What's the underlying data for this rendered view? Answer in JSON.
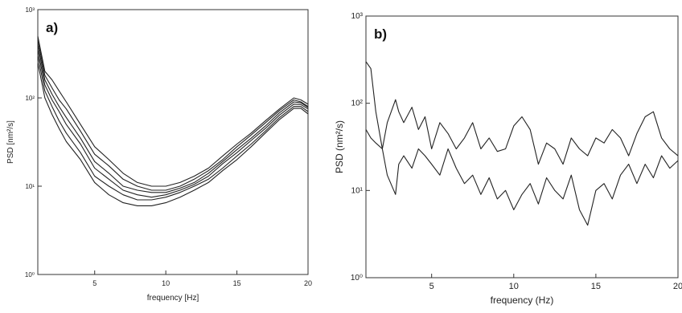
{
  "chart_data": [
    {
      "type": "line",
      "panel_label": "a)",
      "xlabel": "frequency [Hz]",
      "ylabel": "PSD [nm²/s]",
      "x_scale": "linear",
      "y_scale": "log",
      "xlim": [
        1,
        20
      ],
      "ylim": [
        1,
        1000
      ],
      "x_ticks": [
        5,
        10,
        15,
        20
      ],
      "y_ticks": [
        {
          "value": 1,
          "label": "10⁰"
        },
        {
          "value": 10,
          "label": "10¹"
        },
        {
          "value": 100,
          "label": "10²"
        },
        {
          "value": 1000,
          "label": "10³"
        }
      ],
      "grid": false,
      "line_color": "#222222",
      "series": [
        {
          "x": [
            1,
            1.5,
            2,
            2.5,
            3,
            4,
            5,
            6,
            7,
            8,
            9,
            10,
            11,
            12,
            13,
            14,
            15,
            16,
            17,
            18,
            19,
            19.5,
            20
          ],
          "y": [
            500,
            200,
            160,
            120,
            90,
            50,
            28,
            20,
            14,
            11,
            10,
            10,
            11,
            13,
            16,
            22,
            30,
            40,
            55,
            75,
            100,
            95,
            85
          ]
        },
        {
          "x": [
            1,
            1.5,
            2,
            2.5,
            3,
            4,
            5,
            6,
            7,
            8,
            9,
            10,
            11,
            12,
            13,
            14,
            15,
            16,
            17,
            18,
            19,
            19.5,
            20
          ],
          "y": [
            450,
            180,
            130,
            95,
            75,
            42,
            23,
            17,
            12,
            10,
            9,
            9,
            10,
            12,
            15,
            20,
            28,
            38,
            52,
            72,
            95,
            90,
            80
          ]
        },
        {
          "x": [
            1,
            1.5,
            2,
            2.5,
            3,
            4,
            5,
            6,
            7,
            8,
            9,
            10,
            11,
            12,
            13,
            14,
            15,
            16,
            17,
            18,
            19,
            19.5,
            20
          ],
          "y": [
            400,
            160,
            110,
            80,
            60,
            35,
            19,
            14,
            10,
            9,
            8.5,
            8.5,
            9.5,
            11,
            14,
            19,
            26,
            35,
            48,
            68,
            90,
            88,
            78
          ]
        },
        {
          "x": [
            1,
            1.5,
            2,
            2.5,
            3,
            4,
            5,
            6,
            7,
            8,
            9,
            10,
            11,
            12,
            13,
            14,
            15,
            16,
            17,
            18,
            19,
            19.5,
            20
          ],
          "y": [
            350,
            140,
            95,
            70,
            50,
            30,
            16,
            12,
            9,
            8,
            7.5,
            8,
            9,
            10.5,
            13,
            18,
            24,
            33,
            45,
            64,
            85,
            84,
            75
          ]
        },
        {
          "x": [
            1,
            1.5,
            2,
            2.5,
            3,
            4,
            5,
            6,
            7,
            8,
            9,
            10,
            11,
            12,
            13,
            14,
            15,
            16,
            17,
            18,
            19,
            19.5,
            20
          ],
          "y": [
            300,
            120,
            80,
            55,
            40,
            24,
            13,
            10,
            8,
            7,
            7,
            7.5,
            8.5,
            10,
            12,
            16,
            22,
            30,
            42,
            60,
            80,
            80,
            70
          ]
        },
        {
          "x": [
            1,
            1.5,
            2,
            2.5,
            3,
            4,
            5,
            6,
            7,
            8,
            9,
            10,
            11,
            12,
            13,
            14,
            15,
            16,
            17,
            18,
            19,
            19.5,
            20
          ],
          "y": [
            250,
            100,
            65,
            45,
            32,
            20,
            11,
            8,
            6.5,
            6,
            6,
            6.5,
            7.5,
            9,
            11,
            15,
            20,
            28,
            40,
            57,
            76,
            76,
            66
          ]
        }
      ]
    },
    {
      "type": "line",
      "panel_label": "b)",
      "xlabel": "frequency (Hz)",
      "ylabel": "PSD (nm²/s)",
      "x_scale": "linear",
      "y_scale": "log",
      "xlim": [
        1,
        20
      ],
      "ylim": [
        1,
        1000
      ],
      "x_ticks": [
        5,
        10,
        15,
        20
      ],
      "y_ticks": [
        {
          "value": 1,
          "label": "10⁰"
        },
        {
          "value": 10,
          "label": "10¹"
        },
        {
          "value": 100,
          "label": "10²"
        },
        {
          "value": 1000,
          "label": "10³"
        }
      ],
      "grid": false,
      "line_color": "#222222",
      "series": [
        {
          "x": [
            1,
            1.3,
            1.6,
            2,
            2.3,
            2.8,
            3,
            3.3,
            3.8,
            4.2,
            4.6,
            5,
            5.5,
            6,
            6.5,
            7,
            7.5,
            8,
            8.5,
            9,
            9.5,
            10,
            10.5,
            11,
            11.5,
            12,
            12.5,
            13,
            13.5,
            14,
            14.5,
            15,
            15.5,
            16,
            16.5,
            17,
            17.5,
            18,
            18.5,
            19,
            19.5,
            20
          ],
          "y": [
            300,
            250,
            80,
            30,
            60,
            110,
            80,
            60,
            90,
            50,
            70,
            30,
            60,
            45,
            30,
            40,
            60,
            30,
            40,
            28,
            30,
            55,
            70,
            50,
            20,
            35,
            30,
            20,
            40,
            30,
            25,
            40,
            35,
            50,
            40,
            25,
            45,
            70,
            80,
            40,
            30,
            25
          ]
        },
        {
          "x": [
            1,
            1.3,
            1.6,
            2,
            2.3,
            2.8,
            3,
            3.3,
            3.8,
            4.2,
            4.6,
            5,
            5.5,
            6,
            6.5,
            7,
            7.5,
            8,
            8.5,
            9,
            9.5,
            10,
            10.5,
            11,
            11.5,
            12,
            12.5,
            13,
            13.5,
            14,
            14.5,
            15,
            15.5,
            16,
            16.5,
            17,
            17.5,
            18,
            18.5,
            19,
            19.5,
            20
          ],
          "y": [
            50,
            40,
            35,
            30,
            15,
            9,
            20,
            25,
            18,
            30,
            25,
            20,
            15,
            30,
            18,
            12,
            15,
            9,
            14,
            8,
            10,
            6,
            9,
            12,
            7,
            14,
            10,
            8,
            15,
            6,
            4,
            10,
            12,
            8,
            15,
            20,
            12,
            20,
            14,
            25,
            18,
            22
          ]
        }
      ]
    }
  ]
}
